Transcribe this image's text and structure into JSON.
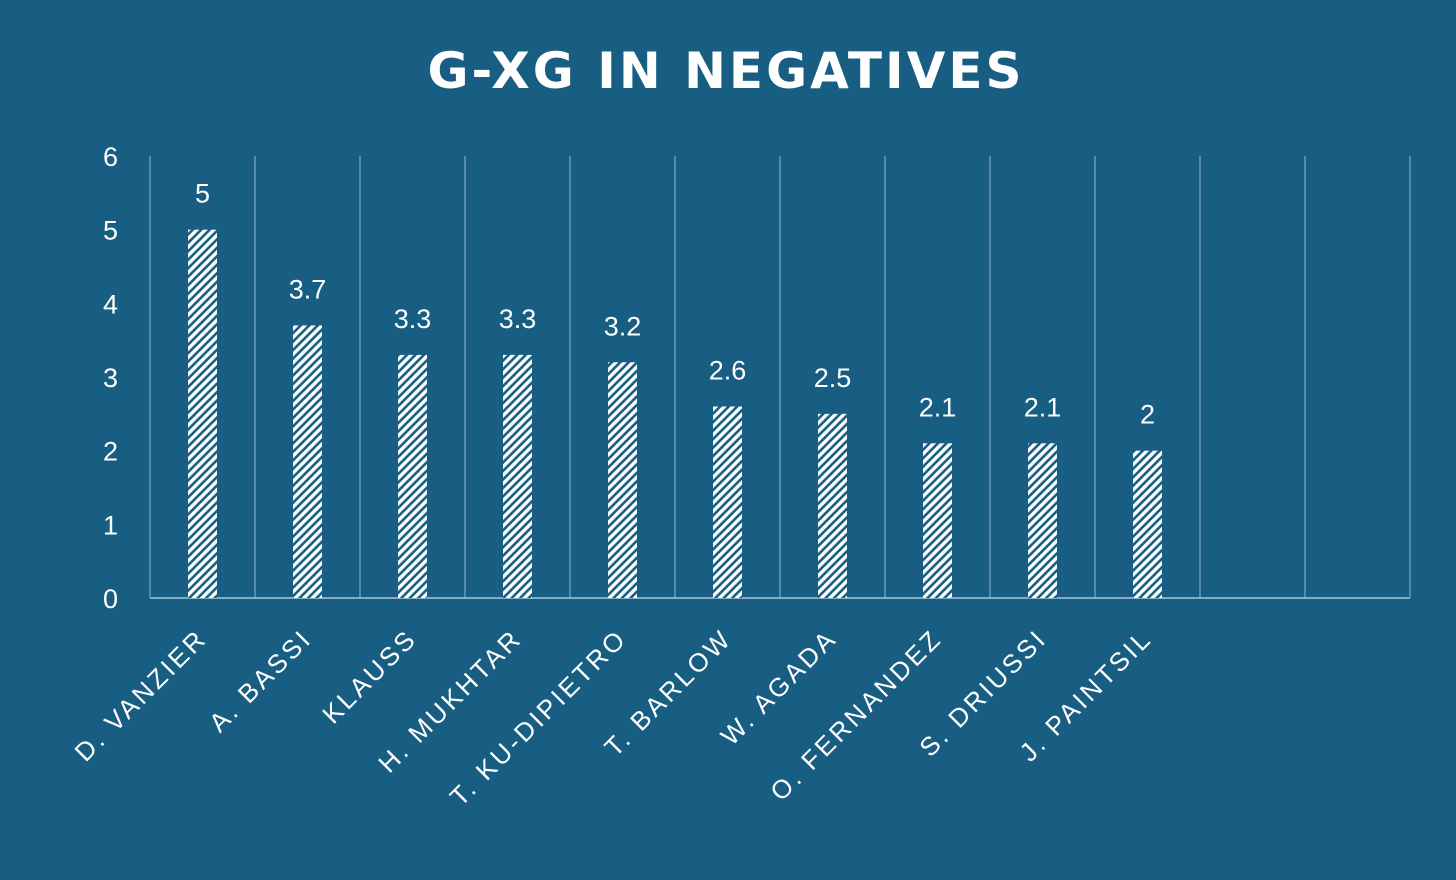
{
  "chart_data": {
    "type": "bar",
    "title": "G-XG IN NEGATIVES",
    "xlabel": "",
    "ylabel": "",
    "categories": [
      "D. VANZIER",
      "A. BASSI",
      "KLAUSS",
      "H. MUKHTAR",
      "T. KU-DIPIETRO",
      "T. BARLOW",
      "W. AGADA",
      "O. FERNANDEZ",
      "S. DRIUSSI",
      "J. PAINTSIL",
      "",
      ""
    ],
    "values": [
      5,
      3.7,
      3.3,
      3.3,
      3.2,
      2.6,
      2.5,
      2.1,
      2.1,
      2,
      null,
      null
    ],
    "value_labels": [
      "5",
      "3.7",
      "3.3",
      "3.3",
      "3.2",
      "2.6",
      "2.5",
      "2.1",
      "2.1",
      "2",
      "",
      ""
    ],
    "ylim": [
      0,
      6
    ],
    "yticks": [
      "0",
      "1",
      "2",
      "3",
      "4",
      "5",
      "6"
    ],
    "grid": "vertical category separators",
    "legend": "none",
    "bar_fill": "white diagonal hatch"
  },
  "colors": {
    "background": "#175e82",
    "text": "#ffffff",
    "bar": "#ffffff",
    "gridline": "#7ea9c2",
    "axis": "#a9c7d8"
  }
}
